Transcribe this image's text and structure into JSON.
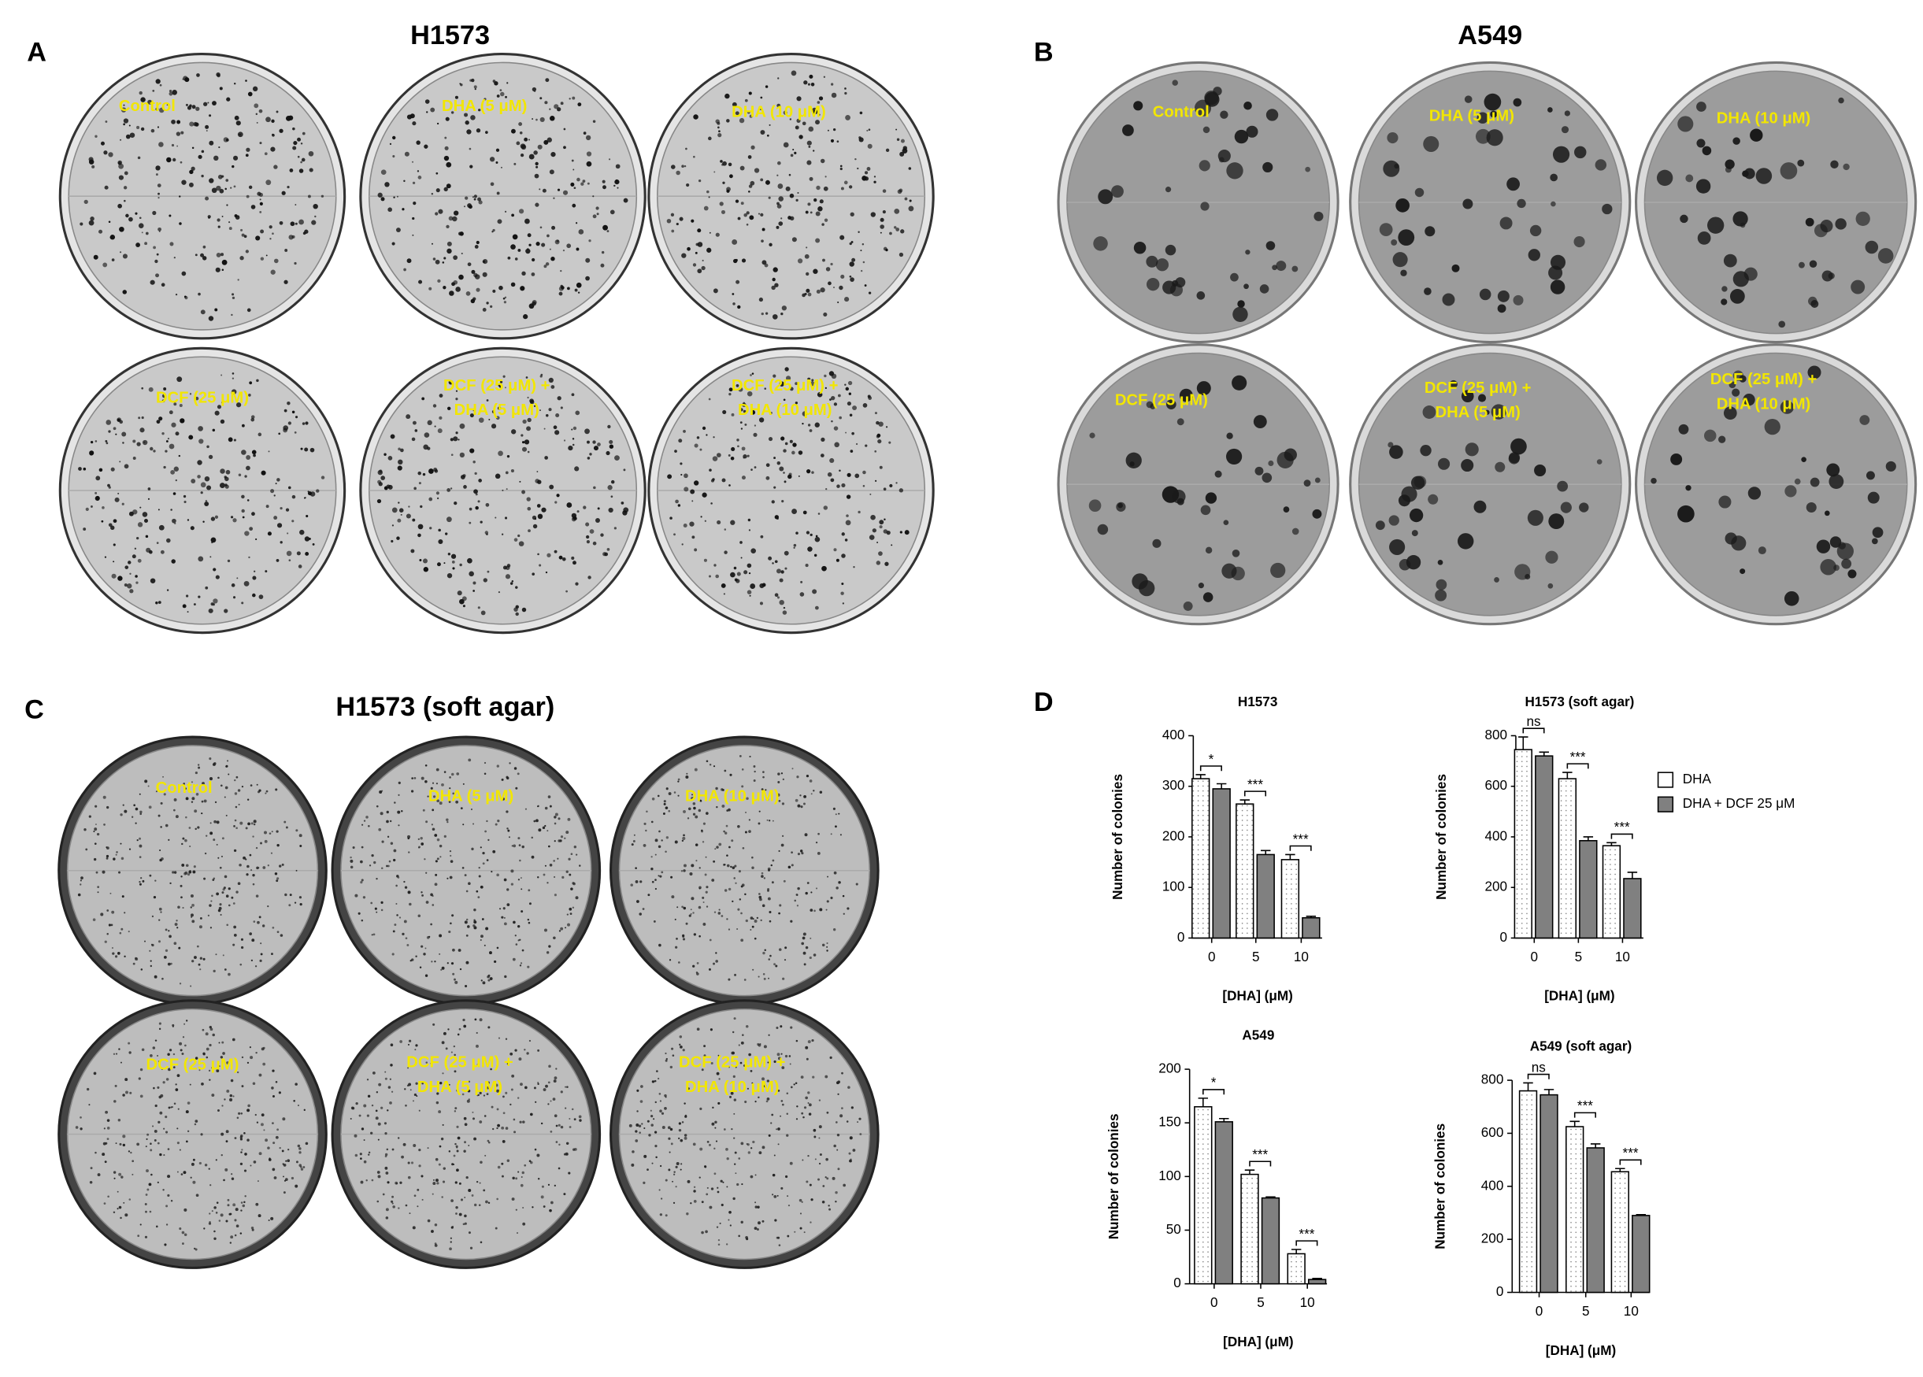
{
  "panel_a": {
    "letter": "A",
    "title": "H1573",
    "dishes": [
      [
        "Control"
      ],
      [
        "DHA (5 μM)"
      ],
      [
        "DHA (10 μM)"
      ],
      [
        "DCF (25 μM)"
      ],
      [
        "DCF (25 μM) +",
        "DHA (5 μM)"
      ],
      [
        "DCF (25 μM) +",
        "DHA (10 μM)"
      ]
    ]
  },
  "panel_b": {
    "letter": "B",
    "title": "A549",
    "dishes": [
      [
        "Control"
      ],
      [
        "DHA (5 μM)"
      ],
      [
        "DHA (10 μM)"
      ],
      [
        "DCF (25 μM)"
      ],
      [
        "DCF (25 μM) +",
        "DHA (5 μM)"
      ],
      [
        "DCF (25 μM) +",
        "DHA (10 μM)"
      ]
    ]
  },
  "panel_c": {
    "letter": "C",
    "title": "H1573 (soft agar)",
    "dishes": [
      [
        "Control"
      ],
      [
        "DHA (5 μM)"
      ],
      [
        "DHA (10 μM)"
      ],
      [
        "DCF (25 μM)"
      ],
      [
        "DCF (25 μM) +",
        "DHA (5 μM)"
      ],
      [
        "DCF (25 μM) +",
        "DHA (10 μM)"
      ]
    ]
  },
  "panel_d": {
    "letter": "D"
  },
  "chart_data": [
    {
      "type": "bar",
      "title": "H1573",
      "xlabel": "[DHA] (μM)",
      "ylabel": "Number of colonies",
      "categories": [
        "0",
        "5",
        "10"
      ],
      "series": [
        {
          "name": "DHA",
          "color": "#ffffff",
          "values": [
            315,
            265,
            155
          ],
          "errors": [
            8,
            8,
            10
          ]
        },
        {
          "name": "DHA + DCF 25 μM",
          "color": "#808080",
          "values": [
            295,
            165,
            40
          ],
          "errors": [
            10,
            8,
            3
          ]
        }
      ],
      "significance": [
        "*",
        "***",
        "***"
      ],
      "ylim": [
        0,
        400
      ],
      "yticks": [
        0,
        100,
        200,
        300,
        400
      ]
    },
    {
      "type": "bar",
      "title": "H1573 (soft agar)",
      "xlabel": "[DHA] (μM)",
      "ylabel": "Number of colonies",
      "categories": [
        "0",
        "5",
        "10"
      ],
      "series": [
        {
          "name": "DHA",
          "color": "#ffffff",
          "values": [
            745,
            630,
            365
          ],
          "errors": [
            50,
            25,
            12
          ]
        },
        {
          "name": "DHA + DCF 25 μM",
          "color": "#808080",
          "values": [
            720,
            385,
            235
          ],
          "errors": [
            15,
            15,
            25
          ]
        }
      ],
      "significance": [
        "ns",
        "***",
        "***"
      ],
      "ylim": [
        0,
        800
      ],
      "yticks": [
        0,
        200,
        400,
        600,
        800
      ],
      "legend": "right"
    },
    {
      "type": "bar",
      "title": "A549",
      "xlabel": "[DHA] (μM)",
      "ylabel": "Number of colonies",
      "categories": [
        "0",
        "5",
        "10"
      ],
      "series": [
        {
          "name": "DHA",
          "color": "#ffffff",
          "values": [
            165,
            102,
            28
          ],
          "errors": [
            8,
            4,
            4
          ]
        },
        {
          "name": "DHA + DCF 25 μM",
          "color": "#808080",
          "values": [
            151,
            80,
            4
          ],
          "errors": [
            3,
            1,
            1
          ]
        }
      ],
      "significance": [
        "*",
        "***",
        "***"
      ],
      "ylim": [
        0,
        200
      ],
      "yticks": [
        0,
        50,
        100,
        150,
        200
      ]
    },
    {
      "type": "bar",
      "title": "A549 (soft agar)",
      "xlabel": "[DHA] (μM)",
      "ylabel": "Number of colonies",
      "categories": [
        "0",
        "5",
        "10"
      ],
      "series": [
        {
          "name": "DHA",
          "color": "#ffffff",
          "values": [
            760,
            625,
            455
          ],
          "errors": [
            30,
            20,
            12
          ]
        },
        {
          "name": "DHA + DCF 25 μM",
          "color": "#808080",
          "values": [
            745,
            545,
            290
          ],
          "errors": [
            20,
            15,
            3
          ]
        }
      ],
      "significance": [
        "ns",
        "***",
        "***"
      ],
      "ylim": [
        0,
        800
      ],
      "yticks": [
        0,
        200,
        400,
        600,
        800
      ]
    }
  ]
}
